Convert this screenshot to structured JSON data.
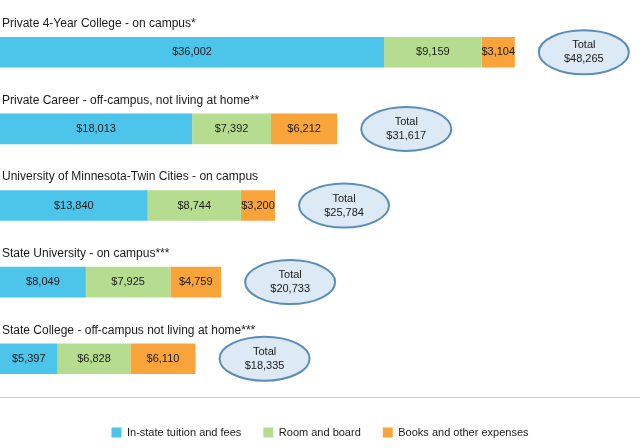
{
  "chart_data": {
    "type": "bar",
    "orientation": "horizontal",
    "stacked": true,
    "data_labels": true,
    "tick_labels": false,
    "legend": "bottom",
    "categories": [
      "Private 4-Year College - on campus*",
      "Private Career - off-campus, not living at home**",
      "University of Minnesota-Twin Cities - on campus",
      "State University - on campus***",
      "State College - off-campus not living at home***"
    ],
    "series": [
      {
        "name": "In-state tuition and fees",
        "color": "#4dc4e9",
        "values": [
          36002,
          18013,
          13840,
          8049,
          5397
        ],
        "value_labels": [
          "$36,002",
          "$18,013",
          "$13,840",
          "$8,049",
          "$5,397"
        ]
      },
      {
        "name": "Room and board",
        "color": "#b6dd8f",
        "values": [
          9159,
          7392,
          8744,
          7925,
          6828
        ],
        "value_labels": [
          "$9,159",
          "$7,392",
          "$8,744",
          "$7,925",
          "$6,828"
        ]
      },
      {
        "name": "Books and other expenses",
        "color": "#f8a43b",
        "values": [
          3104,
          6212,
          3200,
          4759,
          6110
        ],
        "value_labels": [
          "$3,104",
          "$6,212",
          "$3,200",
          "$4,759",
          "$6,110"
        ]
      }
    ],
    "totals": {
      "label": "Total",
      "values": [
        48265,
        31617,
        25784,
        20733,
        18335
      ],
      "value_labels": [
        "$48,265",
        "$31,617",
        "$25,784",
        "$20,733",
        "$18,335"
      ]
    },
    "xlim": [
      0,
      60000
    ]
  }
}
